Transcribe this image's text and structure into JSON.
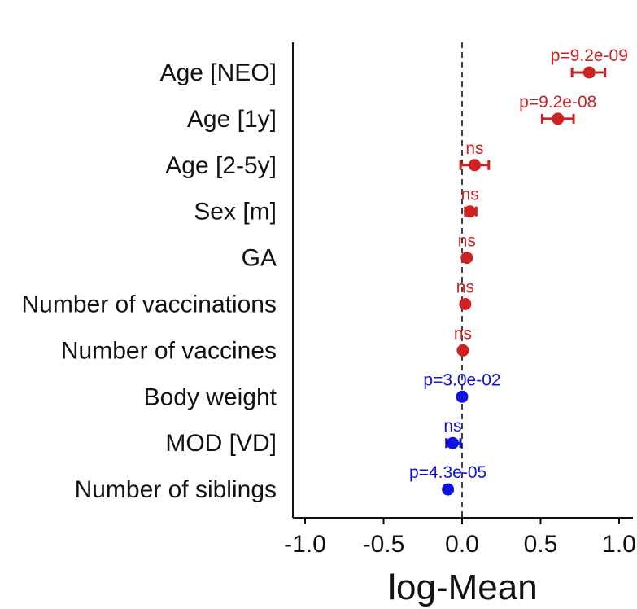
{
  "chart_data": {
    "type": "forest",
    "title": "",
    "xlabel": "log-Mean",
    "ylabel": "",
    "xlim": [
      -1.0,
      1.0
    ],
    "xticks": [
      -1.0,
      -0.5,
      0.0,
      0.5,
      1.0
    ],
    "xtick_labels": [
      "-1.0",
      "-0.5",
      "0.0",
      "0.5",
      "1.0"
    ],
    "reference_line": 0.0,
    "colors": {
      "positive": "#cc2222",
      "negative": "#1111dd"
    },
    "rows": [
      {
        "label": "Age [NEO]",
        "estimate": 0.81,
        "ci_low": 0.7,
        "ci_high": 0.91,
        "p_label": "p=9.2e-09",
        "direction": "positive"
      },
      {
        "label": "Age [1y]",
        "estimate": 0.61,
        "ci_low": 0.51,
        "ci_high": 0.71,
        "p_label": "p=9.2e-08",
        "direction": "positive"
      },
      {
        "label": "Age [2-5y]",
        "estimate": 0.08,
        "ci_low": -0.01,
        "ci_high": 0.17,
        "p_label": "ns",
        "direction": "positive"
      },
      {
        "label": "Sex [m]",
        "estimate": 0.05,
        "ci_low": 0.02,
        "ci_high": 0.09,
        "p_label": "ns",
        "direction": "positive"
      },
      {
        "label": "GA",
        "estimate": 0.03,
        "ci_low": 0.02,
        "ci_high": 0.04,
        "p_label": "ns",
        "direction": "positive"
      },
      {
        "label": "Number of vaccinations",
        "estimate": 0.02,
        "ci_low": 0.01,
        "ci_high": 0.03,
        "p_label": "ns",
        "direction": "positive"
      },
      {
        "label": "Number of vaccines",
        "estimate": 0.005,
        "ci_low": -0.005,
        "ci_high": 0.015,
        "p_label": "ns",
        "direction": "positive"
      },
      {
        "label": "Body weight",
        "estimate": 0.0,
        "ci_low": -0.01,
        "ci_high": 0.01,
        "p_label": "p=3.0e-02",
        "direction": "negative"
      },
      {
        "label": "MOD [VD]",
        "estimate": -0.06,
        "ci_low": -0.1,
        "ci_high": -0.01,
        "p_label": "ns",
        "direction": "negative"
      },
      {
        "label": "Number of siblings",
        "estimate": -0.09,
        "ci_low": -0.11,
        "ci_high": -0.07,
        "p_label": "p=4.3e-05",
        "direction": "negative"
      }
    ]
  }
}
